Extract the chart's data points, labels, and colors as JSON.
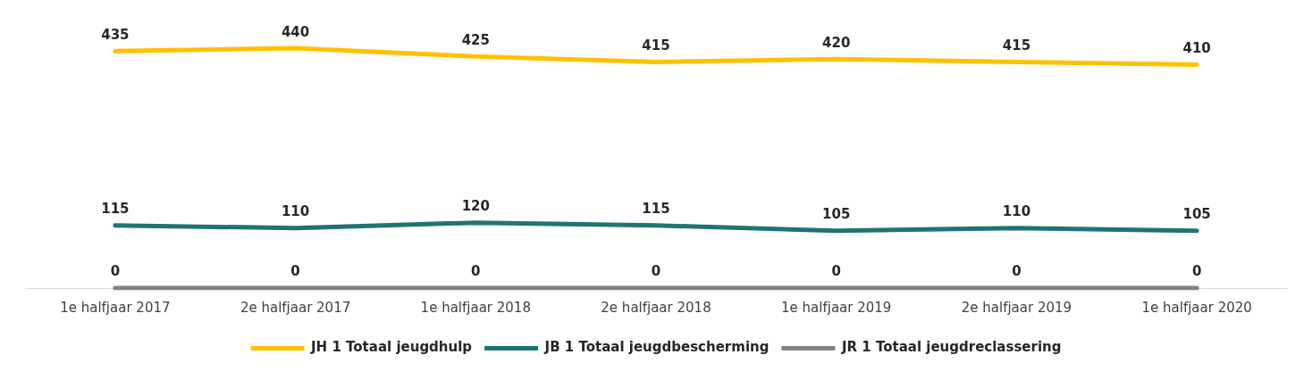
{
  "chart_data": {
    "type": "line",
    "categories": [
      "1e halfjaar 2017",
      "2e halfjaar 2017",
      "1e halfjaar 2018",
      "2e halfjaar 2018",
      "1e halfjaar 2019",
      "2e halfjaar 2019",
      "1e halfjaar 2020"
    ],
    "series": [
      {
        "name": "JH 1 Totaal jeugdhulp",
        "color": "#ffc000",
        "values": [
          435,
          440,
          425,
          415,
          420,
          415,
          410
        ]
      },
      {
        "name": "JB 1 Totaal jeugdbescherming",
        "color": "#1f7472",
        "values": [
          115,
          110,
          120,
          115,
          105,
          110,
          105
        ]
      },
      {
        "name": "JR 1 Totaal jeugdreclassering",
        "color": "#808080",
        "values": [
          0,
          0,
          0,
          0,
          0,
          0,
          0
        ]
      }
    ],
    "data_labels": true,
    "legend": "bottom",
    "grid": false,
    "marker": "none",
    "line_style": "solid",
    "tick_labels": "x"
  }
}
